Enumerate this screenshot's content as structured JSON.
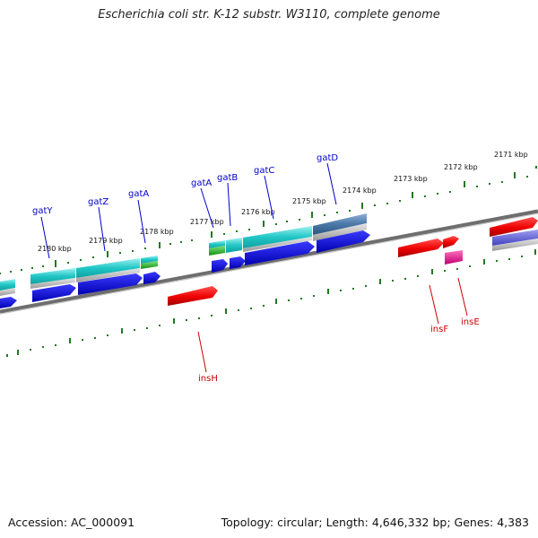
{
  "title": "Escherichia coli str. K-12 substr. W3110, complete genome",
  "footer": {
    "accession": "Accession: AC_000091",
    "summary": "Topology: circular; Length: 4,646,332 bp; Genes: 4,383"
  },
  "colors": {
    "background": "#ffffff",
    "backbone": "#808080",
    "tick": "#1f7a1f",
    "gene_label": "#0000cc",
    "feature_label": "#cc0000",
    "kbp_label": "#111111",
    "cds_forward": "#0000dd",
    "rna_cyan": "#20c6c6",
    "steel": "#4a78a8",
    "red": "#ee0000",
    "magenta": "#e0208a",
    "green": "#20b020",
    "purple": "#6a6adc",
    "gray": "#b0b0b0"
  },
  "kbp_labels": [
    "2171 kbp",
    "2172 kbp",
    "2173 kbp",
    "2174 kbp",
    "2175 kbp",
    "2176 kbp",
    "2177 kbp",
    "2178 kbp",
    "2179 kbp",
    "2180 kbp"
  ],
  "gene_labels": [
    "gatD",
    "gatC",
    "gatB",
    "gatA",
    "gatA",
    "gatZ",
    "gatY"
  ],
  "feature_labels": [
    "insF",
    "insE",
    "insH"
  ]
}
